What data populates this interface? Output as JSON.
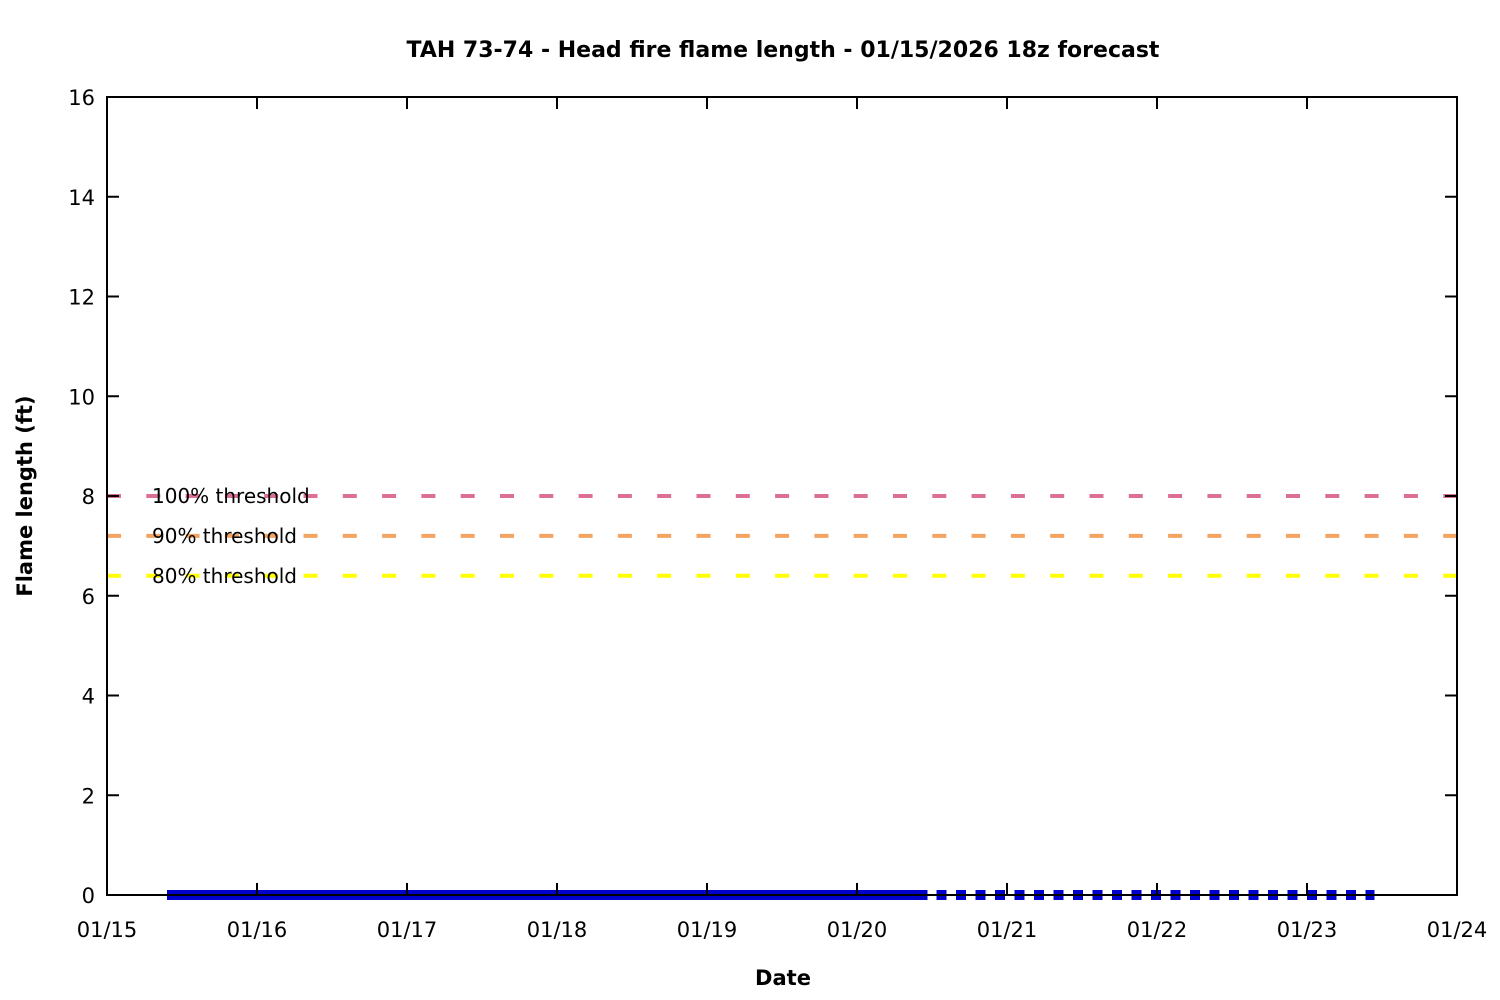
{
  "page": {
    "background": "#ffffff"
  },
  "chart_data": {
    "type": "line",
    "title": "TAH 73-74 - Head fire flame length - 01/15/2026 18z forecast",
    "xlabel": "Date",
    "ylabel": "Flame length (ft)",
    "grid": false,
    "legend_position": "none",
    "x_axis": {
      "min": 15,
      "max": 24,
      "tick_values": [
        15,
        16,
        17,
        18,
        19,
        20,
        21,
        22,
        23,
        24
      ],
      "tick_labels": [
        "01/15",
        "01/16",
        "01/17",
        "01/18",
        "01/19",
        "01/20",
        "01/21",
        "01/22",
        "01/23",
        "01/24"
      ]
    },
    "y_axis": {
      "min": 0,
      "max": 16,
      "tick_values": [
        0,
        2,
        4,
        6,
        8,
        10,
        12,
        14,
        16
      ],
      "tick_labels": [
        "0",
        "2",
        "4",
        "6",
        "8",
        "10",
        "12",
        "14",
        "16"
      ]
    },
    "thresholds": [
      {
        "name": "threshold-100pct",
        "label": "100% threshold",
        "value_ft": 8.0,
        "color": "#db7093",
        "style": "dashed"
      },
      {
        "name": "threshold-90pct",
        "label": "90% threshold",
        "value_ft": 7.2,
        "color": "#f4a460",
        "style": "dashed"
      },
      {
        "name": "threshold-80pct",
        "label": "80% threshold",
        "value_ft": 6.4,
        "color": "#ffff00",
        "style": "dashed"
      }
    ],
    "series": [
      {
        "name": "head-fire-flame-length-observed",
        "style": "solid",
        "color": "#0000cd",
        "value_ft": 0,
        "x_start": 15.4,
        "x_end": 20.47
      },
      {
        "name": "head-fire-flame-length-forecast",
        "style": "dashed",
        "color": "#0000cd",
        "value_ft": 0,
        "x_start": 20.53,
        "x_end": 23.45
      }
    ]
  }
}
